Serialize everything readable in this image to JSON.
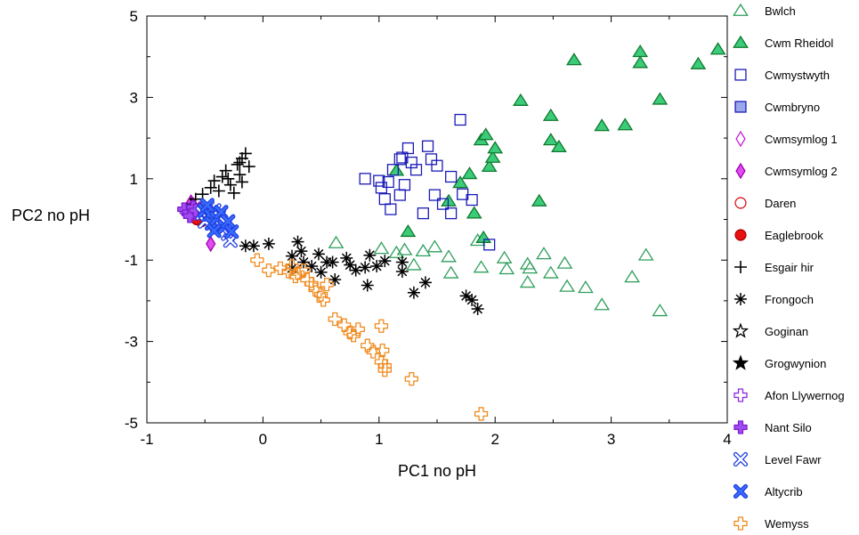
{
  "chart_data": {
    "type": "scatter",
    "xlabel": "PC1 no pH",
    "ylabel": "PC2 no pH",
    "xlim": [
      -1,
      4
    ],
    "ylim": [
      -5,
      5
    ],
    "x_ticks": [
      -1,
      0,
      1,
      2,
      3,
      4
    ],
    "y_ticks": [
      -5,
      -3,
      -1,
      1,
      3,
      5
    ],
    "grid": false,
    "legend_position": "right",
    "series": [
      {
        "name": "Bwlch",
        "marker": "triangle",
        "filled": false,
        "color": "#2E9E5B",
        "fill": "none",
        "points": [
          [
            0.63,
            -0.58
          ],
          [
            1.02,
            -0.72
          ],
          [
            1.15,
            -0.82
          ],
          [
            1.22,
            -0.75
          ],
          [
            1.38,
            -0.78
          ],
          [
            1.3,
            -1.12
          ],
          [
            1.48,
            -0.68
          ],
          [
            1.6,
            -0.92
          ],
          [
            1.62,
            -1.32
          ],
          [
            1.85,
            -0.52
          ],
          [
            1.88,
            -1.18
          ],
          [
            2.08,
            -0.95
          ],
          [
            2.1,
            -1.22
          ],
          [
            2.28,
            -1.1
          ],
          [
            2.3,
            -1.2
          ],
          [
            2.42,
            -0.85
          ],
          [
            2.48,
            -1.32
          ],
          [
            2.6,
            -1.08
          ],
          [
            2.62,
            -1.65
          ],
          [
            2.78,
            -1.68
          ],
          [
            2.92,
            -2.1
          ],
          [
            3.18,
            -1.42
          ],
          [
            3.3,
            -0.88
          ],
          [
            3.42,
            -2.25
          ],
          [
            2.28,
            -1.55
          ]
        ]
      },
      {
        "name": "Cwm Rheidol",
        "marker": "triangle",
        "filled": true,
        "color": "#0E7A2E",
        "fill": "#3CCB78",
        "points": [
          [
            1.15,
            1.2
          ],
          [
            1.25,
            -0.3
          ],
          [
            1.6,
            0.45
          ],
          [
            1.7,
            0.9
          ],
          [
            1.78,
            1.12
          ],
          [
            1.88,
            1.95
          ],
          [
            1.92,
            2.08
          ],
          [
            1.95,
            1.3
          ],
          [
            1.98,
            1.52
          ],
          [
            2.0,
            1.75
          ],
          [
            2.22,
            2.92
          ],
          [
            2.38,
            0.45
          ],
          [
            2.48,
            1.95
          ],
          [
            2.48,
            2.55
          ],
          [
            2.55,
            1.78
          ],
          [
            2.68,
            3.92
          ],
          [
            2.92,
            2.3
          ],
          [
            3.12,
            2.32
          ],
          [
            3.25,
            3.85
          ],
          [
            3.25,
            4.12
          ],
          [
            3.42,
            2.95
          ],
          [
            3.75,
            3.82
          ],
          [
            3.92,
            4.18
          ],
          [
            1.9,
            -0.45
          ],
          [
            1.82,
            0.15
          ]
        ]
      },
      {
        "name": "Cwmystwyth",
        "marker": "square",
        "filled": false,
        "color": "#1A1AB8",
        "fill": "none",
        "points": [
          [
            0.88,
            1.0
          ],
          [
            1.02,
            0.78
          ],
          [
            1.05,
            0.5
          ],
          [
            1.08,
            0.92
          ],
          [
            1.1,
            0.25
          ],
          [
            1.18,
            1.48
          ],
          [
            1.2,
            1.52
          ],
          [
            1.25,
            1.75
          ],
          [
            1.28,
            1.4
          ],
          [
            1.22,
            0.85
          ],
          [
            1.32,
            1.22
          ],
          [
            1.38,
            0.15
          ],
          [
            1.42,
            1.8
          ],
          [
            1.45,
            1.48
          ],
          [
            1.5,
            1.32
          ],
          [
            1.48,
            0.6
          ],
          [
            1.55,
            0.38
          ],
          [
            1.62,
            1.05
          ],
          [
            1.7,
            2.45
          ],
          [
            1.72,
            0.62
          ],
          [
            1.8,
            0.48
          ],
          [
            1.62,
            0.15
          ],
          [
            1.95,
            -0.62
          ],
          [
            1.12,
            1.22
          ],
          [
            1.0,
            0.95
          ],
          [
            1.18,
            0.6
          ]
        ]
      },
      {
        "name": "Cwmbryno",
        "marker": "square",
        "filled": true,
        "color": "#1A1AB8",
        "fill": "#9CA8EC",
        "points": []
      },
      {
        "name": "Cwmsymlog 1",
        "marker": "diamond",
        "filled": false,
        "color": "#C81ED8",
        "fill": "none",
        "points": [
          [
            -0.6,
            0.35
          ],
          [
            -0.55,
            0.12
          ]
        ]
      },
      {
        "name": "Cwmsymlog 2",
        "marker": "diamond",
        "filled": true,
        "color": "#A000B0",
        "fill": "#E14CF0",
        "points": [
          [
            -0.62,
            0.42
          ],
          [
            -0.58,
            0.12
          ],
          [
            -0.5,
            0.08
          ],
          [
            -0.45,
            -0.6
          ],
          [
            -0.55,
            0.25
          ]
        ]
      },
      {
        "name": "Daren",
        "marker": "circle",
        "filled": false,
        "color": "#D81A1A",
        "fill": "none",
        "points": [
          [
            -0.58,
            0.2
          ],
          [
            -0.52,
            0.05
          ]
        ]
      },
      {
        "name": "Eaglebrook",
        "marker": "circle",
        "filled": true,
        "color": "#B00000",
        "fill": "#E81010",
        "points": [
          [
            -0.6,
            0.2
          ],
          [
            -0.56,
            0.1
          ],
          [
            -0.53,
            -0.05
          ],
          [
            -0.5,
            0.15
          ],
          [
            -0.57,
            0.0
          ],
          [
            -0.48,
            0.05
          ]
        ]
      },
      {
        "name": "Esgair hir",
        "marker": "plus",
        "filled": false,
        "color": "#000000",
        "fill": "none",
        "points": [
          [
            -0.62,
            0.38
          ],
          [
            -0.58,
            0.5
          ],
          [
            -0.52,
            0.62
          ],
          [
            -0.45,
            0.78
          ],
          [
            -0.42,
            0.95
          ],
          [
            -0.35,
            1.05
          ],
          [
            -0.32,
            1.2
          ],
          [
            -0.28,
            0.85
          ],
          [
            -0.22,
            1.35
          ],
          [
            -0.2,
            1.1
          ],
          [
            -0.18,
            1.5
          ],
          [
            -0.15,
            1.62
          ],
          [
            -0.12,
            1.3
          ],
          [
            -0.18,
            0.92
          ],
          [
            -0.25,
            0.65
          ],
          [
            -0.38,
            0.7
          ],
          [
            -0.3,
            1.0
          ],
          [
            -0.2,
            1.4
          ]
        ]
      },
      {
        "name": "Frongoch",
        "marker": "asterisk",
        "filled": false,
        "color": "#000000",
        "fill": "none",
        "points": [
          [
            -0.15,
            -0.65
          ],
          [
            -0.08,
            -0.65
          ],
          [
            0.05,
            -0.6
          ],
          [
            0.25,
            -0.9
          ],
          [
            0.3,
            -0.55
          ],
          [
            0.33,
            -0.78
          ],
          [
            0.35,
            -1.05
          ],
          [
            0.42,
            -1.15
          ],
          [
            0.48,
            -0.85
          ],
          [
            0.5,
            -1.3
          ],
          [
            0.55,
            -1.05
          ],
          [
            0.62,
            -1.48
          ],
          [
            0.72,
            -0.95
          ],
          [
            0.75,
            -1.12
          ],
          [
            0.8,
            -1.25
          ],
          [
            0.88,
            -1.18
          ],
          [
            0.92,
            -0.88
          ],
          [
            0.9,
            -1.62
          ],
          [
            0.98,
            -1.15
          ],
          [
            1.05,
            -1.02
          ],
          [
            1.2,
            -1.05
          ],
          [
            1.2,
            -1.28
          ],
          [
            1.3,
            -1.8
          ],
          [
            1.4,
            -1.55
          ],
          [
            1.75,
            -1.88
          ],
          [
            1.8,
            -1.98
          ],
          [
            1.85,
            -2.2
          ],
          [
            0.25,
            -1.2
          ],
          [
            0.6,
            -1.05
          ]
        ]
      },
      {
        "name": "Goginan",
        "marker": "star",
        "filled": false,
        "color": "#000000",
        "fill": "none",
        "points": []
      },
      {
        "name": "Grogwynion",
        "marker": "star",
        "filled": true,
        "color": "#000000",
        "fill": "#000000",
        "points": []
      },
      {
        "name": "Afon Llywernog",
        "marker": "cross",
        "filled": false,
        "color": "#8A2BE2",
        "fill": "none",
        "points": [
          [
            -0.66,
            0.2
          ],
          [
            -0.62,
            0.25
          ],
          [
            -0.6,
            0.15
          ]
        ]
      },
      {
        "name": "Nant Silo",
        "marker": "cross",
        "filled": true,
        "color": "#7A1FD0",
        "fill": "#A24BF0",
        "points": [
          [
            -0.68,
            0.25
          ],
          [
            -0.64,
            0.18
          ],
          [
            -0.6,
            0.3
          ],
          [
            -0.63,
            0.08
          ],
          [
            -0.58,
            0.22
          ]
        ]
      },
      {
        "name": "Level Fawr",
        "marker": "x",
        "filled": false,
        "color": "#1E3EE0",
        "fill": "none",
        "points": [
          [
            -0.52,
            0.15
          ],
          [
            -0.48,
            0.3
          ],
          [
            -0.45,
            0.05
          ],
          [
            -0.4,
            -0.12
          ],
          [
            -0.42,
            0.22
          ],
          [
            -0.35,
            -0.2
          ],
          [
            -0.3,
            -0.35
          ],
          [
            -0.28,
            -0.52
          ],
          [
            -0.5,
            -0.05
          ],
          [
            -0.38,
            0.08
          ]
        ]
      },
      {
        "name": "Altycrib",
        "marker": "x",
        "filled": true,
        "color": "#1E3EE0",
        "fill": "#3A6CFF",
        "points": [
          [
            -0.5,
            0.22
          ],
          [
            -0.46,
            0.12
          ],
          [
            -0.44,
            -0.1
          ],
          [
            -0.48,
            0.35
          ],
          [
            -0.4,
            0.02
          ],
          [
            -0.42,
            -0.28
          ],
          [
            -0.33,
            -0.18
          ],
          [
            -0.36,
            0.18
          ],
          [
            -0.3,
            -0.05
          ],
          [
            -0.27,
            -0.3
          ]
        ]
      },
      {
        "name": "Wemyss",
        "marker": "cross",
        "filled": false,
        "color": "#F08A1E",
        "fill": "none",
        "points": [
          [
            -0.05,
            -1.0
          ],
          [
            0.05,
            -1.25
          ],
          [
            0.15,
            -1.2
          ],
          [
            0.22,
            -1.28
          ],
          [
            0.25,
            -1.15
          ],
          [
            0.3,
            -1.32
          ],
          [
            0.38,
            -1.48
          ],
          [
            0.42,
            -1.58
          ],
          [
            0.45,
            -1.72
          ],
          [
            0.5,
            -1.85
          ],
          [
            0.52,
            -1.98
          ],
          [
            0.55,
            -1.6
          ],
          [
            0.62,
            -2.45
          ],
          [
            0.7,
            -2.6
          ],
          [
            0.75,
            -2.78
          ],
          [
            0.78,
            -2.85
          ],
          [
            0.82,
            -2.7
          ],
          [
            0.9,
            -3.1
          ],
          [
            0.95,
            -3.25
          ],
          [
            1.02,
            -2.62
          ],
          [
            1.03,
            -3.22
          ],
          [
            1.02,
            -3.5
          ],
          [
            1.05,
            -3.6
          ],
          [
            1.05,
            -3.7
          ],
          [
            1.28,
            -3.92
          ],
          [
            1.88,
            -4.78
          ],
          [
            0.35,
            -1.25
          ],
          [
            0.28,
            -1.4
          ]
        ]
      }
    ]
  }
}
